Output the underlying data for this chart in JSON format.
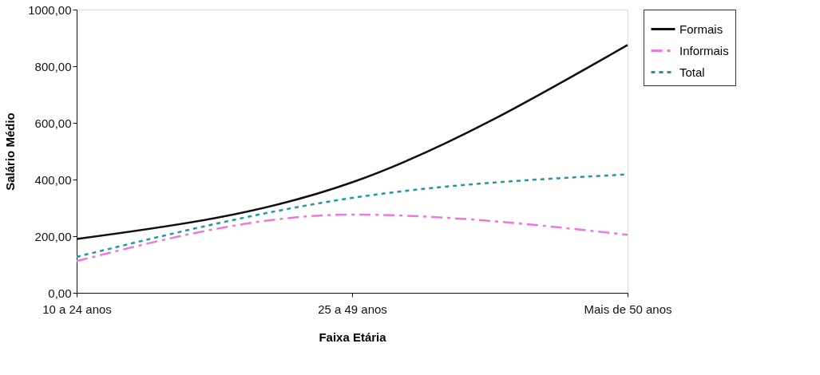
{
  "chart_data": {
    "type": "line",
    "xlabel": "Faixa Etária",
    "ylabel": "Salário Médio",
    "categories": [
      "10 a  24 anos",
      "25 a 49 anos",
      "Mais de 50 anos"
    ],
    "ylim": [
      0,
      1000
    ],
    "yticks": [
      {
        "value": 0,
        "label": "0,00"
      },
      {
        "value": 200,
        "label": "200,00"
      },
      {
        "value": 400,
        "label": "400,00"
      },
      {
        "value": 600,
        "label": "600,00"
      },
      {
        "value": 800,
        "label": "800,00"
      },
      {
        "value": 1000,
        "label": "1000,00"
      }
    ],
    "legend": "right",
    "marker": "none",
    "series": [
      {
        "name": "Formais",
        "color": "#111111",
        "line_style": "solid",
        "values": [
          190,
          390,
          875
        ]
      },
      {
        "name": "Informais",
        "color": "#ee77dd",
        "line_style": "dashed",
        "values": [
          112,
          276,
          205
        ]
      },
      {
        "name": "Total",
        "color": "#1f9aa0",
        "line_style": "dotted",
        "values": [
          127,
          335,
          418
        ]
      }
    ]
  }
}
